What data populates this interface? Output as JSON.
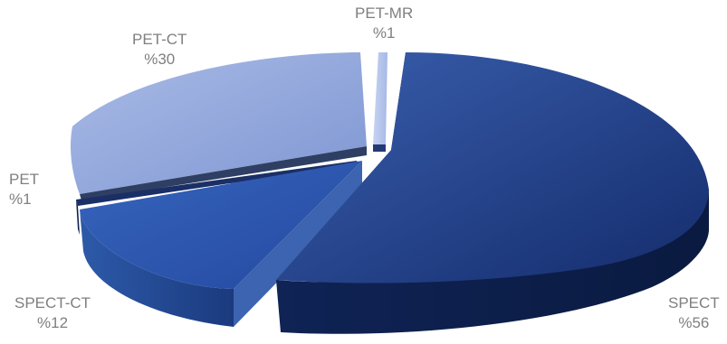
{
  "chart_data": {
    "type": "pie",
    "style": "3d-exploded",
    "title": "",
    "slices": [
      {
        "name": "SPECT",
        "value": 56,
        "label": "%56",
        "color": "#1f3f8a"
      },
      {
        "name": "SPECT-CT",
        "value": 12,
        "label": "%12",
        "color": "#2c57ad"
      },
      {
        "name": "PET",
        "value": 1,
        "label": "%1",
        "color": "#1a2f66"
      },
      {
        "name": "PET-CT",
        "value": 30,
        "label": "%30",
        "color": "#8fa4d9"
      },
      {
        "name": "PET-MR",
        "value": 1,
        "label": "%1",
        "color": "#b7c6ec"
      }
    ],
    "label_color": "#7f7f7f",
    "legend": "none"
  }
}
